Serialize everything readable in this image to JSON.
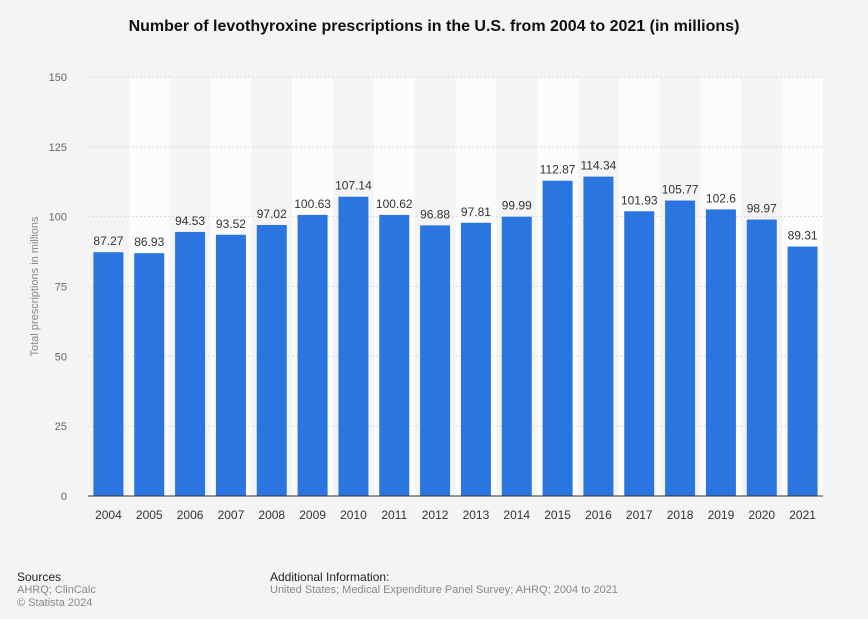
{
  "chart_data": {
    "type": "bar",
    "title": "Number of levothyroxine prescriptions in the U.S. from 2004 to 2021 (in millions)",
    "xlabel": "",
    "ylabel": "Total prescriptions in millions",
    "ylim": [
      0,
      150
    ],
    "yticks": [
      0,
      25,
      50,
      75,
      100,
      125,
      150
    ],
    "grid": true,
    "bar_color": "#2a75e0",
    "categories": [
      "2004",
      "2005",
      "2006",
      "2007",
      "2008",
      "2009",
      "2010",
      "2011",
      "2012",
      "2013",
      "2014",
      "2015",
      "2016",
      "2017",
      "2018",
      "2019",
      "2020",
      "2021"
    ],
    "values": [
      87.27,
      86.93,
      94.53,
      93.52,
      97.02,
      100.63,
      107.14,
      100.62,
      96.88,
      97.81,
      99.99,
      112.87,
      114.34,
      101.93,
      105.77,
      102.6,
      98.97,
      89.31
    ],
    "value_labels": [
      "87.27",
      "86.93",
      "94.53",
      "93.52",
      "97.02",
      "100.63",
      "107.14",
      "100.62",
      "96.88",
      "97.81",
      "99.99",
      "112.87",
      "114.34",
      "101.93",
      "105.77",
      "102.6",
      "98.97",
      "89.31"
    ]
  },
  "footer": {
    "sources_heading": "Sources",
    "sources_line1": "AHRQ; ClinCalc",
    "sources_line2": "© Statista 2024",
    "additional_heading": "Additional Information:",
    "additional_text": "United States; Medical Expenditure Panel Survey; AHRQ; 2004 to 2021"
  }
}
